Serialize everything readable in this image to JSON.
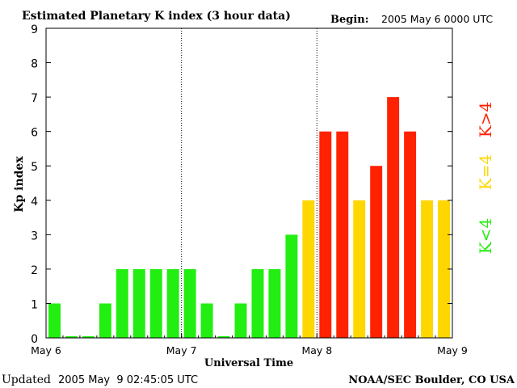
{
  "header": {
    "title": "Estimated Planetary K index (3 hour data)",
    "begin_label": "Begin:",
    "begin_value": "2005 May 6 0000 UTC"
  },
  "footer": {
    "updated_label": "Updated",
    "updated_value": "2005 May  9 02:45:05 UTC",
    "credit": "NOAA/SEC Boulder, CO USA"
  },
  "legend": {
    "below": "K<4",
    "equal": "K=4",
    "above": "K>4"
  },
  "colors": {
    "below": "#22ee11",
    "equal": "#ffd700",
    "above": "#ff2200",
    "axis": "#000000",
    "background": "#ffffff"
  },
  "chart_data": {
    "type": "bar",
    "title": "Estimated Planetary K index (3 hour data)",
    "xlabel": "Universal Time",
    "ylabel": "Kp index",
    "ylim": [
      0,
      9
    ],
    "yticks": [
      "0",
      "1",
      "2",
      "3",
      "4",
      "5",
      "6",
      "7",
      "8",
      "9"
    ],
    "x_day_labels": [
      "May 6",
      "May 7",
      "May 8",
      "May 9"
    ],
    "interval_hours": 3,
    "values": [
      1,
      0.05,
      0.05,
      1,
      2,
      2,
      2,
      2,
      2,
      1,
      0.05,
      1,
      2,
      2,
      3,
      4,
      6,
      6,
      4,
      5,
      7,
      6,
      4,
      4
    ],
    "day_separators": "dotted",
    "grid": false
  }
}
